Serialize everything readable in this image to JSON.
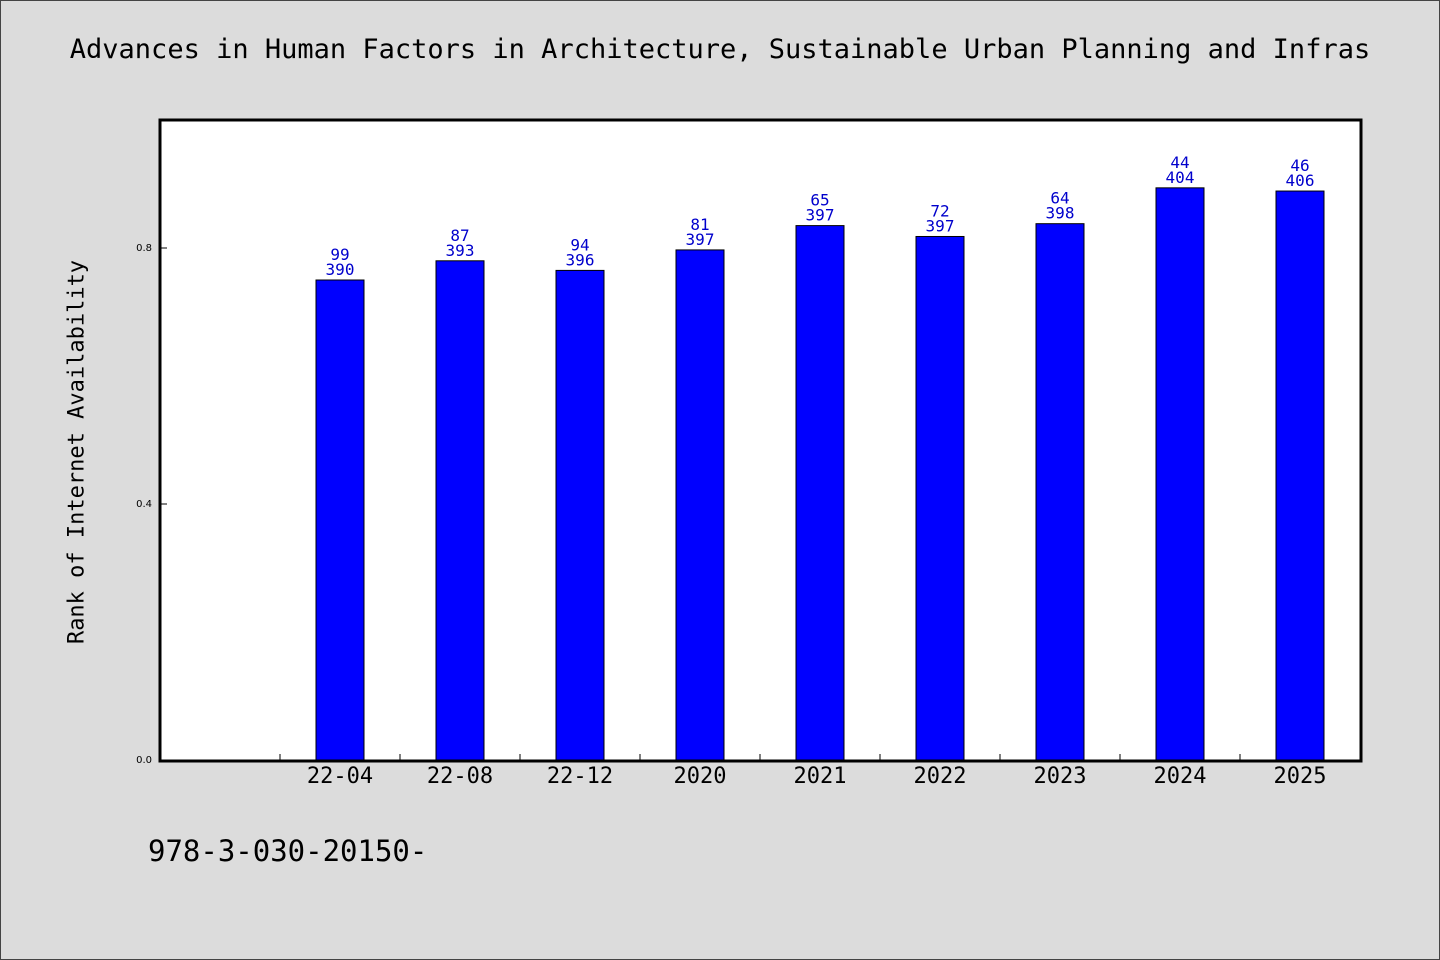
{
  "chart_data": {
    "type": "bar",
    "title": "Advances in Human Factors in Architecture, Sustainable Urban Planning and Infras",
    "ylabel": "Rank of Internet Availability",
    "xlabel": "",
    "categories": [
      "22-04",
      "22-08",
      "22-12",
      "2020",
      "2021",
      "2022",
      "2023",
      "2024",
      "2025"
    ],
    "values": [
      0.75,
      0.78,
      0.765,
      0.797,
      0.835,
      0.818,
      0.838,
      0.894,
      0.889
    ],
    "labels_top": [
      "99",
      "87",
      "94",
      "81",
      "65",
      "72",
      "64",
      "44",
      "46"
    ],
    "labels_bottom": [
      "390",
      "393",
      "396",
      "397",
      "397",
      "397",
      "398",
      "404",
      "406"
    ],
    "yticks": [
      0.0,
      0.4,
      0.8
    ],
    "ytick_labels": [
      "0.0",
      "0.4",
      "0.8"
    ],
    "ylim": [
      0,
      0.96
    ],
    "grid": false,
    "bar_color": "#0000ff",
    "label_color": "#0000cc"
  },
  "footer": "978-3-030-20150-"
}
